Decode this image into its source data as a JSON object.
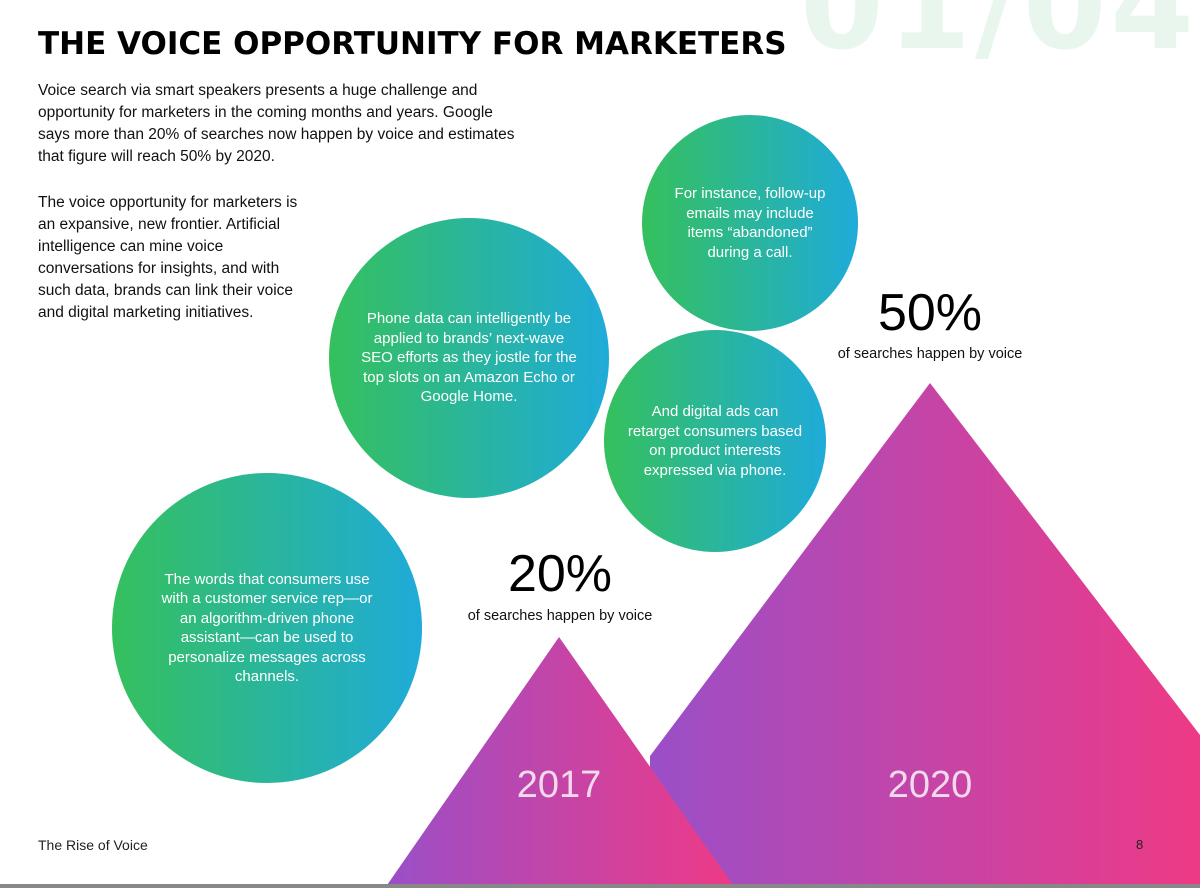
{
  "watermark": "01/04",
  "title": "THE VOICE OPPORTUNITY FOR MARKETERS",
  "intro": "Voice search via smart speakers presents a huge challenge and opportunity for marketers in the coming months and years. Google says more than 20% of searches now happen by voice and estimates that figure will reach 50% by 2020.",
  "body": "The voice opportunity for marketers is an expansive, new frontier. Artificial intelligence can mine voice conversations for insights, and with such data, brands can link their voice and digital marketing initiatives.",
  "bubbles": [
    "For instance, follow-up emails may include items “abandoned” during a call.",
    "Phone data can intelligently be applied to brands’ next-wave SEO efforts as they jostle for the top slots on an Amazon Echo or Google Home.",
    "And digital ads can retarget consumers based on product interests expressed via phone.",
    "The words that consumers use with a customer service rep—or an algorithm-driven phone assistant—can be used to personalize messages across channels."
  ],
  "stats": [
    {
      "year": "2017",
      "value": "20%",
      "caption": "of searches happen by voice"
    },
    {
      "year": "2020",
      "value": "50%",
      "caption": "of searches happen by voice"
    }
  ],
  "colors": {
    "bubble_start": "#35c05d",
    "bubble_end": "#1fabd9",
    "triangle_start": "#9a4fc8",
    "triangle_end": "#ee3a86"
  },
  "footer": {
    "doc_title": "The Rise of Voice",
    "page_number": "8"
  }
}
